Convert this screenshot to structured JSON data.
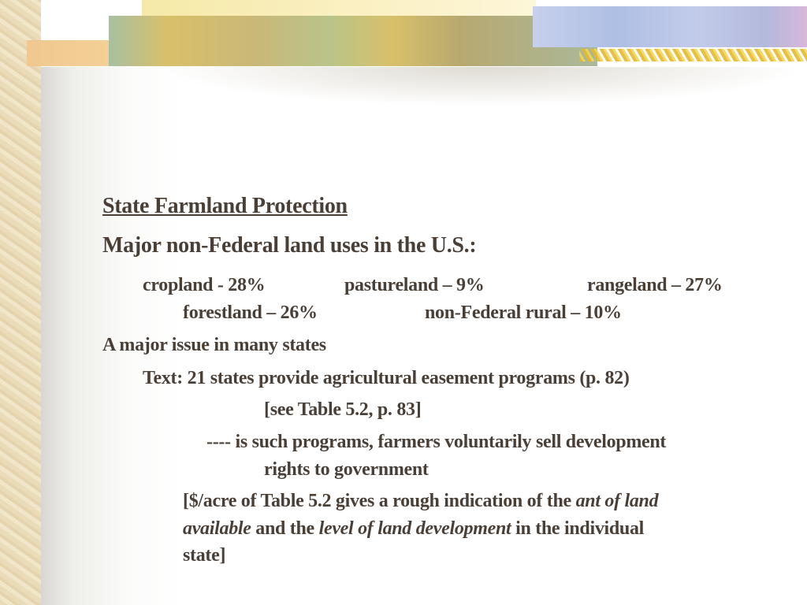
{
  "title": "State Farmland Protection",
  "subtitle": "Major non-Federal land uses in the U.S.:",
  "land_uses": [
    "cropland - 28%",
    "pastureland – 9%",
    "rangeland – 27%",
    "forestland – 26%",
    "non-Federal rural – 10%"
  ],
  "issue": "A major issue in many states",
  "text_line": "Text:  21 states provide agricultural easement programs (p. 82)",
  "see_table": "[see Table 5.2, p. 83]",
  "programs_line1": "---- is such programs, farmers voluntarily sell development",
  "programs_line2": "rights to government",
  "note": {
    "part1": "[$/acre of Table 5.2 gives a rough indication of the ",
    "italic1": "ant of land",
    "italic1b": "available",
    "part2": " and the ",
    "italic2": "level of land development",
    "part3": " in the individual",
    "part4": "state]"
  },
  "text_color": "#4a3f36"
}
